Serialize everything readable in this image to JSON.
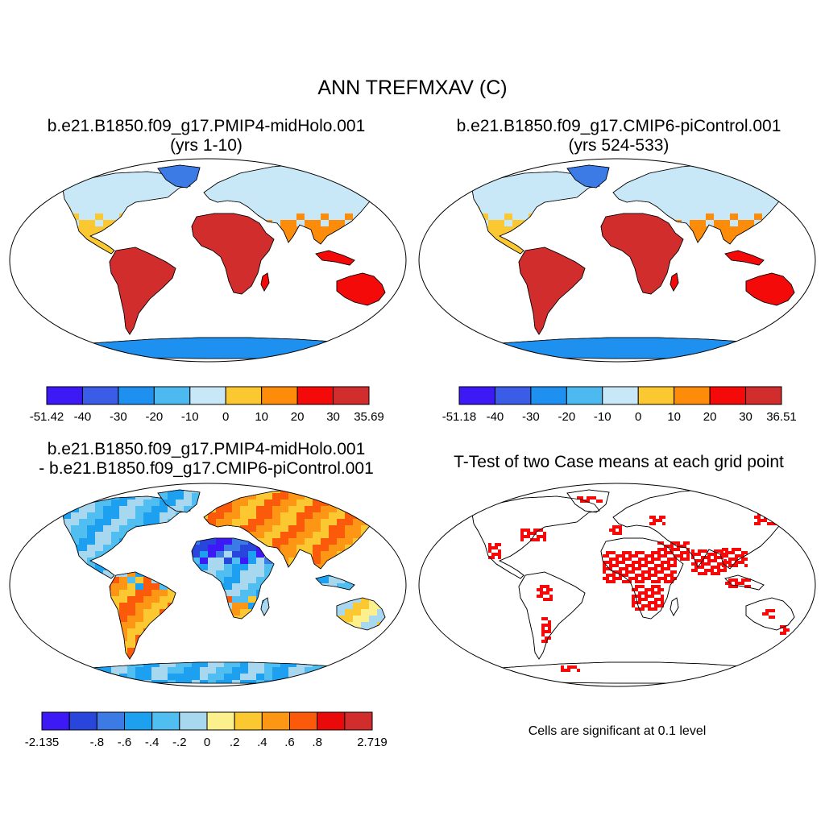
{
  "title": "ANN TREFMXAV (C)",
  "panels": {
    "top_left": {
      "title_line1": "b.e21.B1850.f09_g17.PMIP4-midHolo.001",
      "title_line2": "(yrs 1-10)",
      "colorbar": {
        "labels": [
          "-51.42",
          "-40",
          "-30",
          "-20",
          "-10",
          "0",
          "10",
          "20",
          "30",
          "35.69"
        ],
        "colors": [
          "#3c19f5",
          "#3a5ce6",
          "#1e90f0",
          "#4cbaf0",
          "#c8e8f8",
          "#fcc832",
          "#fc8c0a",
          "#f50a0a",
          "#d22d2d"
        ]
      }
    },
    "top_right": {
      "title_line1": "b.e21.B1850.f09_g17.CMIP6-piControl.001",
      "title_line2": "(yrs 524-533)",
      "colorbar": {
        "labels": [
          "-51.18",
          "-40",
          "-30",
          "-20",
          "-10",
          "0",
          "10",
          "20",
          "30",
          "36.51"
        ],
        "colors": [
          "#3c19f5",
          "#3a5ce6",
          "#1e90f0",
          "#4cbaf0",
          "#c8e8f8",
          "#fcc832",
          "#fc8c0a",
          "#f50a0a",
          "#d22d2d"
        ]
      }
    },
    "bottom_left": {
      "title_line1": "b.e21.B1850.f09_g17.PMIP4-midHolo.001",
      "title_line2": "- b.e21.B1850.f09_g17.CMIP6-piControl.001",
      "colorbar": {
        "labels": [
          "-2.135",
          "",
          "-.8",
          "-.6",
          "-.4",
          "-.2",
          "0",
          ".2",
          ".4",
          ".6",
          ".8",
          "",
          "2.719"
        ],
        "colors": [
          "#3c19f5",
          "#2846dc",
          "#3c7ae6",
          "#1ea0f0",
          "#50bef0",
          "#a8d8f0",
          "#fcf08c",
          "#fcc832",
          "#fc9614",
          "#fa5a0a",
          "#eb0a0a",
          "#d22d2d"
        ]
      }
    },
    "bottom_right": {
      "title_line1": "T-Test of two Case means at each grid point",
      "note": "Cells are significant at 0.1 level"
    }
  }
}
